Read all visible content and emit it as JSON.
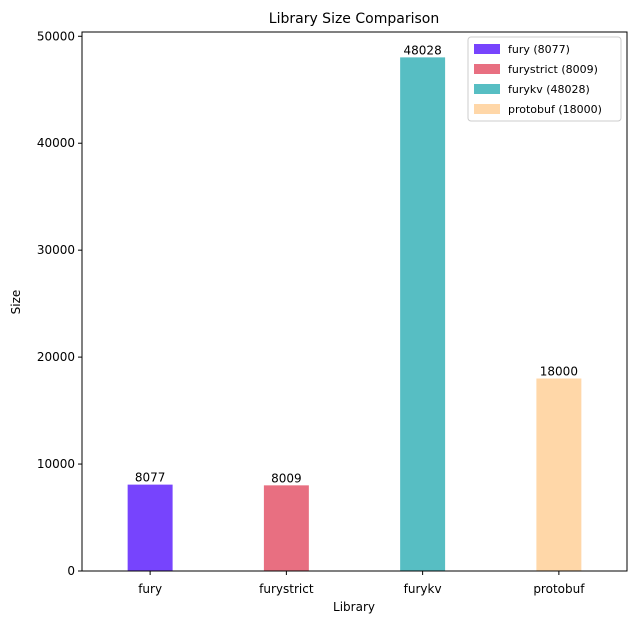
{
  "chart_data": {
    "type": "bar",
    "title": "Library Size Comparison",
    "xlabel": "Library",
    "ylabel": "Size",
    "categories": [
      "fury",
      "furystrict",
      "furykv",
      "protobuf"
    ],
    "values": [
      8077,
      8009,
      48028,
      18000
    ],
    "value_labels": [
      "8077",
      "8009",
      "48028",
      "18000"
    ],
    "colors": [
      "#7744fd",
      "#e86f81",
      "#57bec3",
      "#ffd7a8"
    ],
    "legend_labels": [
      "fury (8077)",
      "furystrict (8009)",
      "furykv (48028)",
      "protobuf (18000)"
    ],
    "legend_position": "top-right",
    "ylim": [
      0,
      50400
    ],
    "yticks": [
      0,
      10000,
      20000,
      30000,
      40000,
      50000
    ],
    "ytick_labels": [
      "0",
      "10000",
      "20000",
      "30000",
      "40000",
      "50000"
    ],
    "grid": false
  }
}
